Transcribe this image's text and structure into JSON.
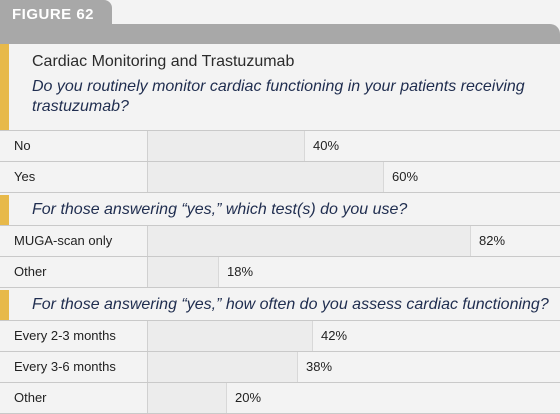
{
  "figure_label": "FIGURE 62",
  "chart_data": {
    "type": "bar",
    "title": "Cardiac Monitoring and Trastuzumab",
    "unit": "%",
    "xlim": [
      0,
      100
    ],
    "sections": [
      {
        "question": "Do you routinely monitor cardiac functioning in your patients receiving trastuzumab?",
        "categories": [
          "No",
          "Yes"
        ],
        "values": [
          40,
          60
        ],
        "labels": [
          "40%",
          "60%"
        ]
      },
      {
        "question": "For those answering “yes,” which test(s) do you use?",
        "categories": [
          "MUGA-scan only",
          "Other"
        ],
        "values": [
          82,
          18
        ],
        "labels": [
          "82%",
          "18%"
        ]
      },
      {
        "question": "For those answering “yes,” how often do you assess cardiac functioning?",
        "categories": [
          "Every 2-3 months",
          "Every 3-6 months",
          "Other"
        ],
        "values": [
          42,
          38,
          20
        ],
        "labels": [
          "42%",
          "38%",
          "20%"
        ]
      }
    ]
  },
  "colors": {
    "accent": "#e7b94a",
    "header_gray": "#a8a8a8",
    "question_text": "#1f2d4f"
  }
}
